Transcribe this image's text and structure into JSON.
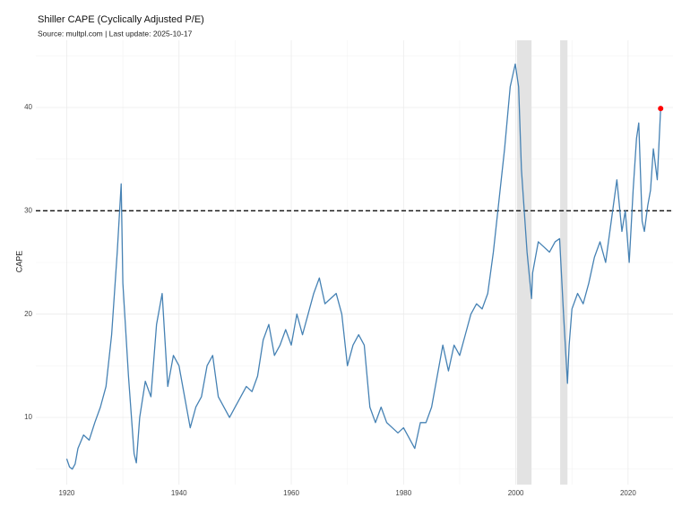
{
  "chart_data": {
    "type": "line",
    "title": "Shiller CAPE (Cyclically Adjusted P/E)",
    "subtitle": "Source: multpl.com | Last update: 2025-10-17",
    "y_label": "CAPE",
    "x": [
      1920,
      1920.5,
      1921,
      1921.5,
      1922,
      1923,
      1924,
      1925,
      1926,
      1927,
      1928,
      1929,
      1929.7,
      1930,
      1931,
      1932,
      1932.4,
      1933,
      1934,
      1935,
      1936,
      1937,
      1938,
      1939,
      1940,
      1941,
      1942,
      1943,
      1944,
      1945,
      1946,
      1947,
      1948,
      1949,
      1950,
      1951,
      1952,
      1953,
      1954,
      1955,
      1956,
      1957,
      1958,
      1959,
      1960,
      1961,
      1962,
      1963,
      1964,
      1965,
      1966,
      1967,
      1968,
      1969,
      1970,
      1971,
      1972,
      1973,
      1974,
      1975,
      1976,
      1977,
      1978,
      1979,
      1980,
      1981,
      1982,
      1983,
      1984,
      1985,
      1986,
      1987,
      1988,
      1989,
      1990,
      1991,
      1992,
      1993,
      1994,
      1995,
      1996,
      1997,
      1998,
      1999,
      1999.9,
      2000.5,
      2001,
      2001.5,
      2002,
      2002.8,
      2003,
      2004,
      2005,
      2006,
      2007,
      2007.8,
      2008.5,
      2009.2,
      2009.5,
      2010,
      2011,
      2012,
      2013,
      2014,
      2015,
      2016,
      2017,
      2018,
      2018.9,
      2019.5,
      2020.2,
      2020.9,
      2021.5,
      2021.9,
      2022.5,
      2022.9,
      2023.5,
      2024,
      2024.5,
      2025.2,
      2025.8
    ],
    "series": [
      {
        "name": "CAPE",
        "color": "#4682b4",
        "values": [
          6.0,
          5.2,
          5.0,
          5.5,
          7.0,
          8.3,
          7.8,
          9.5,
          11,
          13,
          18,
          26,
          32.6,
          23,
          14,
          6.5,
          5.6,
          10,
          13.5,
          12,
          19,
          22,
          13,
          16,
          15,
          12,
          9,
          11,
          12,
          15,
          16,
          12,
          11,
          10,
          11,
          12,
          13,
          12.5,
          14,
          17.5,
          19,
          16,
          17,
          18.5,
          17,
          20,
          18,
          20,
          22,
          23.5,
          21,
          21.5,
          22,
          20,
          15,
          17,
          18,
          17,
          11,
          9.5,
          11,
          9.5,
          9,
          8.5,
          9,
          8,
          7,
          9.5,
          9.5,
          11,
          14,
          17,
          14.5,
          17,
          16,
          18,
          20,
          21,
          20.5,
          22,
          26,
          31,
          36,
          42,
          44.2,
          42,
          34,
          30,
          26,
          21.5,
          24,
          27,
          26.5,
          26,
          27,
          27.3,
          20,
          13.3,
          17,
          20.5,
          22,
          21,
          23,
          25.5,
          27,
          25,
          29,
          33,
          28,
          30,
          25,
          32,
          37,
          38.5,
          29,
          28,
          30.5,
          32,
          36,
          33,
          39.9
        ]
      }
    ],
    "xlim": [
      1914.5,
      2028
    ],
    "ylim": [
      3.5,
      46.5
    ],
    "xticks": [
      1920,
      1940,
      1960,
      1980,
      2000,
      2020
    ],
    "yticks": [
      10,
      20,
      30,
      40
    ],
    "x_minor": [
      1930,
      1950,
      1970,
      1990,
      2010
    ],
    "y_minor": [
      5,
      15,
      25,
      35,
      45
    ],
    "grid": true,
    "reference_line": 30,
    "shaded": [
      [
        2000.2,
        2002.8
      ],
      [
        2007.9,
        2009.2
      ]
    ],
    "shade_color": "#e3e3e3",
    "highlight_last_color": "red"
  }
}
